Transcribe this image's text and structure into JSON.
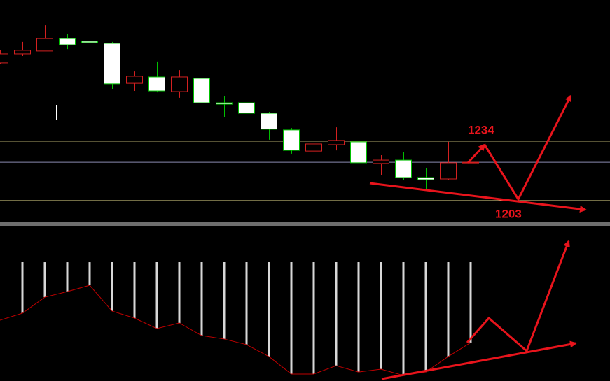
{
  "chart_data": [
    {
      "type": "candlestick",
      "ylim": [
        1190,
        1316
      ],
      "open": [
        1280.6,
        1285.7,
        1287.3,
        1294.3,
        1292.8,
        1291.6,
        1269.1,
        1272.7,
        1264.4,
        1271.9,
        1258.1,
        1258.1,
        1252.2,
        1242.8,
        1230.9,
        1234.5,
        1236.1,
        1223.9,
        1225.8,
        1216.0,
        1215.2,
        1224.3
      ],
      "high": [
        1287.7,
        1292.4,
        1301.8,
        1297.1,
        1295.5,
        1292.4,
        1275.8,
        1281.4,
        1276.6,
        1275.8,
        1261.7,
        1260.9,
        1253.0,
        1243.9,
        1240.0,
        1244.3,
        1242.0,
        1228.6,
        1230.2,
        1221.5,
        1236.1,
        1227.4
      ],
      "low": [
        1279.8,
        1284.5,
        1287.3,
        1288.4,
        1289.2,
        1266.0,
        1264.8,
        1264.0,
        1260.9,
        1254.2,
        1249.9,
        1246.3,
        1237.3,
        1229.4,
        1227.4,
        1231.3,
        1223.1,
        1217.2,
        1214.4,
        1208.9,
        1214.4,
        1221.5
      ],
      "close": [
        1285.7,
        1287.7,
        1294.3,
        1290.8,
        1292.0,
        1268.8,
        1273.1,
        1264.8,
        1272.7,
        1258.1,
        1257.3,
        1252.2,
        1243.2,
        1231.3,
        1234.9,
        1236.9,
        1224.3,
        1225.8,
        1216.0,
        1214.8,
        1224.3,
        1224.6
      ],
      "up_color": "#d42020",
      "down_color": "#00c000",
      "hlines": [
        {
          "value": 1236.5,
          "color": "#e6dc8c"
        },
        {
          "value": 1224.6,
          "color": "#8a8ab0"
        },
        {
          "value": 1203.0,
          "color": "#e6dc8c"
        }
      ],
      "annotations": [
        1234,
        1203
      ],
      "annotation_color": "#e8141c"
    },
    {
      "type": "indicator",
      "ylim": [
        0,
        100
      ],
      "line": [
        42.4,
        47.3,
        58.5,
        62.4,
        66.8,
        48.8,
        43.9,
        36.6,
        40.5,
        31.7,
        29.3,
        25.4,
        17.1,
        4.9,
        4.9,
        10.7,
        6.3,
        8.3,
        3.9,
        6.3,
        17.1,
        26.8
      ],
      "line_color": "#c00000",
      "bars": [
        null,
        82.9,
        82.9,
        82.9,
        82.9,
        82.9,
        82.9,
        82.9,
        82.9,
        82.9,
        82.9,
        82.9,
        82.9,
        82.9,
        82.9,
        82.9,
        82.9,
        82.9,
        82.9,
        82.9,
        82.9,
        82.9
      ],
      "bar_color": "#d8d8d8"
    }
  ]
}
